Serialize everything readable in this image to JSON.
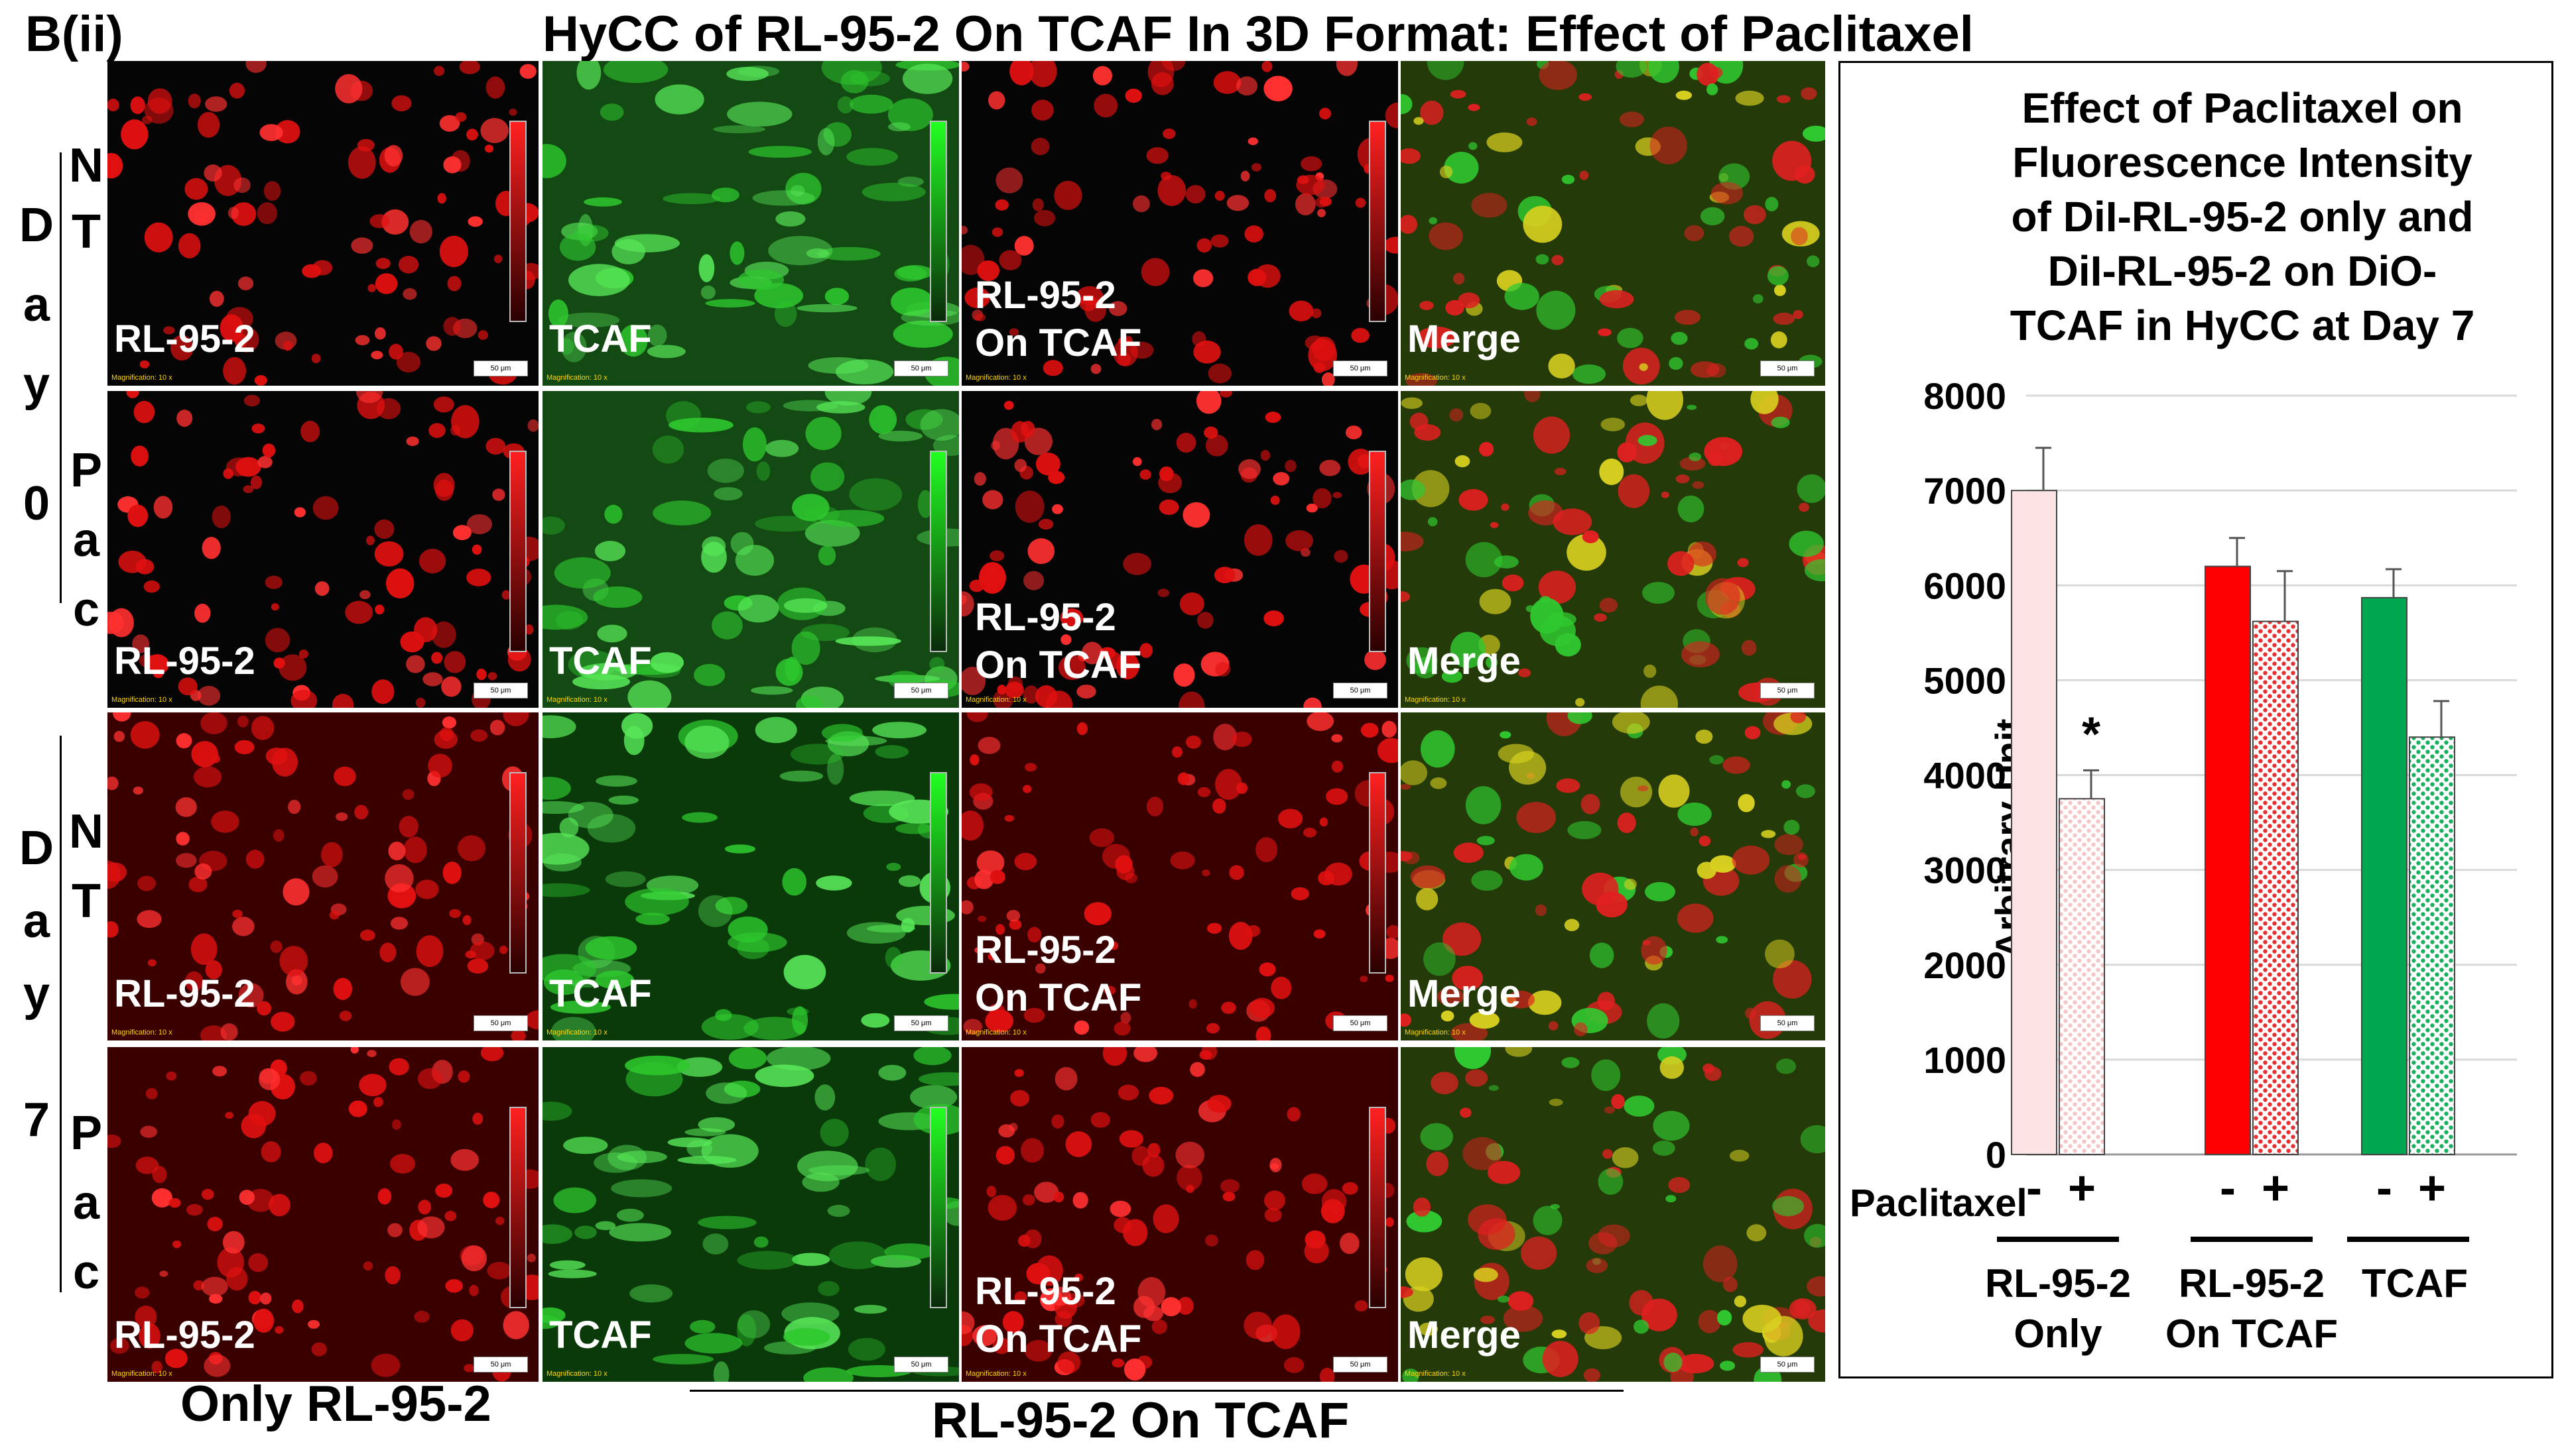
{
  "figure": {
    "panel_label": "B(ii)",
    "title": "HyCC of RL-95-2 On TCAF In 3D Format: Effect of Paclitaxel"
  },
  "row_groups": [
    {
      "day": "Day 0",
      "rows": [
        {
          "treatment": "NT"
        },
        {
          "treatment": "Pac"
        }
      ]
    },
    {
      "day": "Day 7",
      "rows": [
        {
          "treatment": "NT"
        },
        {
          "treatment": "Pac"
        }
      ]
    }
  ],
  "micrographs": {
    "columns": [
      {
        "label": "RL-95-2",
        "channel": "red"
      },
      {
        "label": "TCAF",
        "channel": "green"
      },
      {
        "label": "RL-95-2\nOn TCAF",
        "channel": "red"
      },
      {
        "label": "Merge",
        "channel": "merge"
      }
    ],
    "magnification_text": "Magnification: 10 x",
    "scale_bar_text": "50 μm"
  },
  "bottom_captions": {
    "left": "Only RL-95-2",
    "right": "RL-95-2 On TCAF"
  },
  "chart_data": {
    "type": "bar",
    "title": "Effect of Paclitaxel on Fluorescence Intensity of DiI-RL-95-2 only and DiI-RL-95-2 on DiO-TCAF in HyCC at Day 7",
    "title_lines": [
      "Effect of Paclitaxel on",
      "Fluorescence Intensity",
      "of DiI-RL-95-2 only and",
      "DiI-RL-95-2 on DiO-",
      "TCAF in HyCC at Day 7"
    ],
    "ylabel": "Arbitrary Unit",
    "ylim": [
      0,
      8000
    ],
    "yticks": [
      0,
      1000,
      2000,
      3000,
      4000,
      5000,
      6000,
      7000,
      8000
    ],
    "paclitaxel_label": "Paclitaxel",
    "groups": [
      {
        "label_lines": [
          "RL-95-2",
          "Only"
        ],
        "label": "RL-95-2 Only",
        "bars": [
          {
            "paclitaxel": "-",
            "value": 7000,
            "error": 450,
            "color": "#fce4e4",
            "pattern": "solid"
          },
          {
            "paclitaxel": "+",
            "value": 3750,
            "error": 300,
            "color": "#f6c6c6",
            "pattern": "hatched",
            "annotation": "*"
          }
        ]
      },
      {
        "label_lines": [
          "RL-95-2",
          "On  TCAF"
        ],
        "label": "RL-95-2 On TCAF",
        "bars": [
          {
            "paclitaxel": "-",
            "value": 6200,
            "error": 300,
            "color": "#ff0000",
            "pattern": "solid"
          },
          {
            "paclitaxel": "+",
            "value": 5620,
            "error": 530,
            "color": "#e83030",
            "pattern": "hatched"
          }
        ]
      },
      {
        "label_lines": [
          "TCAF"
        ],
        "label": "TCAF",
        "bars": [
          {
            "paclitaxel": "-",
            "value": 5870,
            "error": 300,
            "color": "#00a650",
            "pattern": "solid"
          },
          {
            "paclitaxel": "+",
            "value": 4400,
            "error": 380,
            "color": "#19b060",
            "pattern": "hatched"
          }
        ]
      }
    ]
  }
}
